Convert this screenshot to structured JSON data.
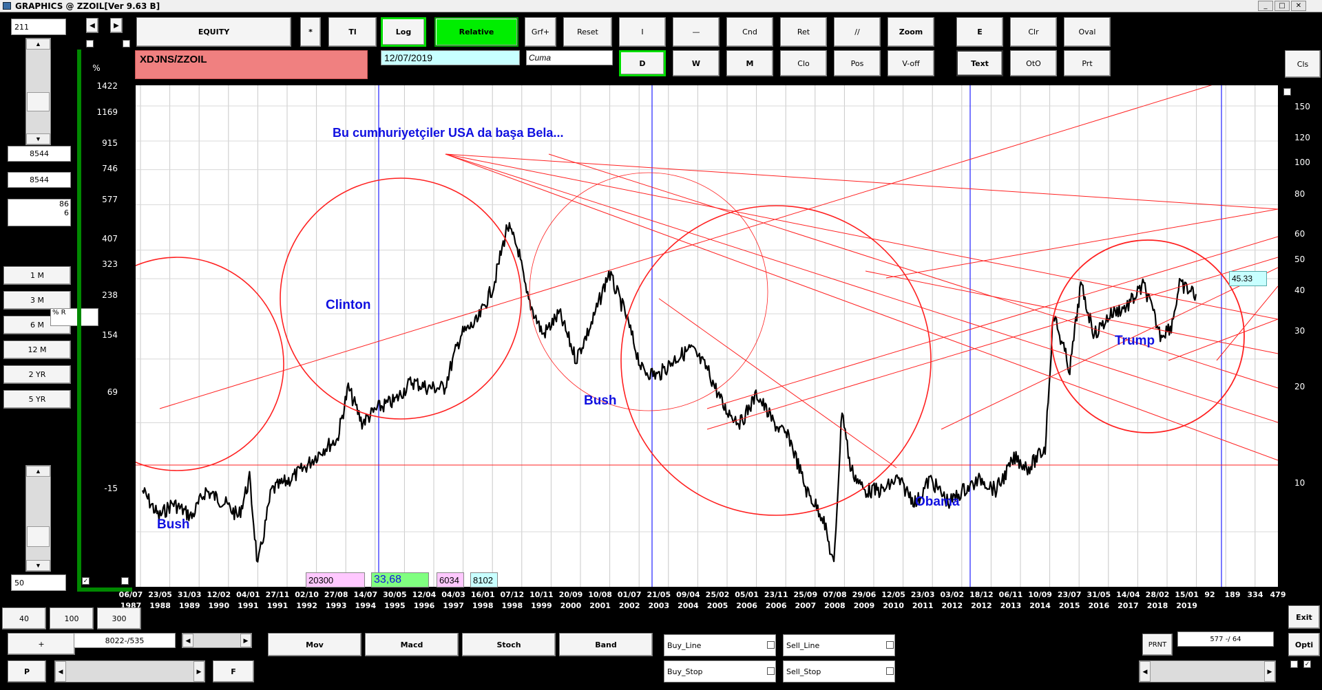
{
  "window": {
    "title": "GRAPHICS  @ ZZOIL[Ver 9.63 B]",
    "min": "_",
    "max": "□",
    "close": "✕"
  },
  "toolbar": {
    "equity": "EQUITY",
    "star": "*",
    "tl": "Tl",
    "log": "Log",
    "relative": "Relative",
    "grf": "Grf+",
    "reset": "Reset",
    "i_btn": "I",
    "dash": "—",
    "cnd": "Cnd",
    "ret": "Ret",
    "slashes": "//",
    "zoom": "Zoom",
    "e_btn": "E",
    "clr": "Clr",
    "oval": "Oval",
    "d_btn": "D",
    "w_btn": "W",
    "m_btn": "M",
    "clo": "Clo",
    "pos": "Pos",
    "voff": "V-off",
    "text": "Text",
    "oto": "OtO",
    "prt": "Prt",
    "cls": "Cls"
  },
  "symbol": "XDJNS/ZZOIL",
  "date": "12/07/2019",
  "day": "Cuma",
  "left_panel": {
    "top_value": "211",
    "val1": "8544",
    "val2": "8544",
    "val3a": "86",
    "val3b": "6",
    "pct_label": "% R",
    "periods": [
      "1 M",
      "3 M",
      "6 M",
      "12 M",
      "2 YR",
      "5 YR"
    ],
    "bottom_value": "50"
  },
  "y_axis_left": {
    "unit": "%",
    "ticks": [
      "1422",
      "1169",
      "915",
      "746",
      "577",
      "407",
      "323",
      "238",
      "154",
      "69",
      "-15"
    ]
  },
  "y_axis_right": {
    "ticks": [
      "150",
      "120",
      "100",
      "80",
      "60",
      "50",
      "40",
      "30",
      "20",
      "10"
    ]
  },
  "x_axis": {
    "labels": [
      [
        "06/07",
        "1987"
      ],
      [
        "23/05",
        "1988"
      ],
      [
        "31/03",
        "1989"
      ],
      [
        "12/02",
        "1990"
      ],
      [
        "04/01",
        "1991"
      ],
      [
        "27/11",
        "1991"
      ],
      [
        "02/10",
        "1992"
      ],
      [
        "27/08",
        "1993"
      ],
      [
        "14/07",
        "1994"
      ],
      [
        "30/05",
        "1995"
      ],
      [
        "12/04",
        "1996"
      ],
      [
        "04/03",
        "1997"
      ],
      [
        "16/01",
        "1998"
      ],
      [
        "07/12",
        "1998"
      ],
      [
        "10/11",
        "1999"
      ],
      [
        "20/09",
        "2000"
      ],
      [
        "10/08",
        "2001"
      ],
      [
        "01/07",
        "2002"
      ],
      [
        "21/05",
        "2003"
      ],
      [
        "09/04",
        "2004"
      ],
      [
        "25/02",
        "2005"
      ],
      [
        "05/01",
        "2006"
      ],
      [
        "23/11",
        "2006"
      ],
      [
        "25/09",
        "2007"
      ],
      [
        "07/08",
        "2008"
      ],
      [
        "29/06",
        "2009"
      ],
      [
        "12/05",
        "2010"
      ],
      [
        "23/03",
        "2011"
      ],
      [
        "03/02",
        "2012"
      ],
      [
        "18/12",
        "2012"
      ],
      [
        "06/11",
        "2013"
      ],
      [
        "10/09",
        "2014"
      ],
      [
        "23/07",
        "2015"
      ],
      [
        "31/05",
        "2016"
      ],
      [
        "14/04",
        "2017"
      ],
      [
        "28/02",
        "2018"
      ],
      [
        "15/01",
        "2019"
      ],
      [
        "92",
        ""
      ],
      [
        "189",
        ""
      ],
      [
        "334",
        ""
      ],
      [
        "479",
        ""
      ]
    ]
  },
  "annotations": {
    "headline": "Bu cumhuriyetçiler  USA  da başa Bela...",
    "bush1": "Bush",
    "clinton": "Clinton",
    "bush2": "Bush",
    "obama": "Obama",
    "trump": "Trump"
  },
  "last_value": "45.33",
  "info": {
    "a": "20300",
    "b": "33,68",
    "c": "6034",
    "d": "8102"
  },
  "bottom": {
    "b40": "40",
    "b100": "100",
    "b300": "300",
    "plus": "+",
    "range": "8022-/535",
    "p": "P",
    "f": "F",
    "mov": "Mov",
    "macd": "Macd",
    "stoch": "Stoch",
    "band": "Band",
    "buy_line": "Buy_Line",
    "sell_line": "Sell_Line",
    "buy_stop": "Buy_Stop",
    "sell_stop": "Sell_Stop",
    "exit": "Exit",
    "opti": "Opti",
    "prnt": "PRNT",
    "coords": "577 -/ 64"
  },
  "colors": {
    "symbol_bg": "#f08080",
    "date_bg": "#c8ffff",
    "accent_green": "#00ee00",
    "annot_blue": "#1010e0",
    "trend_red": "#ff2020"
  },
  "chart_data": {
    "type": "line",
    "title": "",
    "series": [
      {
        "name": "XDJNS/ZZOIL",
        "x": [
          "1987-07",
          "1988-01",
          "1988-06",
          "1989-01",
          "1989-06",
          "1990-01",
          "1990-06",
          "1990-10",
          "1991-01",
          "1991-06",
          "1992-01",
          "1992-06",
          "1993-01",
          "1993-06",
          "1993-10",
          "1994-03",
          "1994-09",
          "1995-03",
          "1995-09",
          "1996-03",
          "1996-09",
          "1997-03",
          "1997-09",
          "1998-03",
          "1998-08",
          "1998-12",
          "1999-03",
          "1999-09",
          "2000-03",
          "2000-09",
          "2001-03",
          "2001-09",
          "2002-03",
          "2002-09",
          "2003-03",
          "2003-09",
          "2004-03",
          "2004-09",
          "2005-03",
          "2005-09",
          "2006-03",
          "2006-09",
          "2007-03",
          "2007-09",
          "2008-03",
          "2008-07",
          "2008-10",
          "2009-01",
          "2009-06",
          "2010-01",
          "2010-06",
          "2011-01",
          "2011-06",
          "2012-01",
          "2012-06",
          "2013-01",
          "2013-06",
          "2014-01",
          "2014-06",
          "2014-12",
          "2015-03",
          "2015-09",
          "2016-01",
          "2016-06",
          "2016-12",
          "2017-06",
          "2017-12",
          "2018-06",
          "2018-10",
          "2019-01",
          "2019-07"
        ],
        "y": [
          13,
          11,
          12,
          11,
          13,
          12,
          11,
          14,
          8,
          13,
          14,
          15,
          17,
          18,
          25,
          20,
          22,
          23,
          26,
          25,
          25,
          35,
          38,
          48,
          70,
          60,
          45,
          35,
          40,
          30,
          38,
          52,
          40,
          28,
          27,
          30,
          32,
          28,
          22,
          20,
          24,
          20,
          18,
          13,
          11,
          8,
          22,
          15,
          13,
          13,
          14,
          12,
          14,
          12,
          13,
          14,
          13,
          16,
          15,
          17,
          40,
          28,
          48,
          35,
          40,
          42,
          48,
          35,
          37,
          48,
          45.33
        ]
      }
    ],
    "y_scale": "log",
    "ylim": [
      8,
      150
    ],
    "xlim": [
      "1987-07",
      "2019-07"
    ]
  }
}
